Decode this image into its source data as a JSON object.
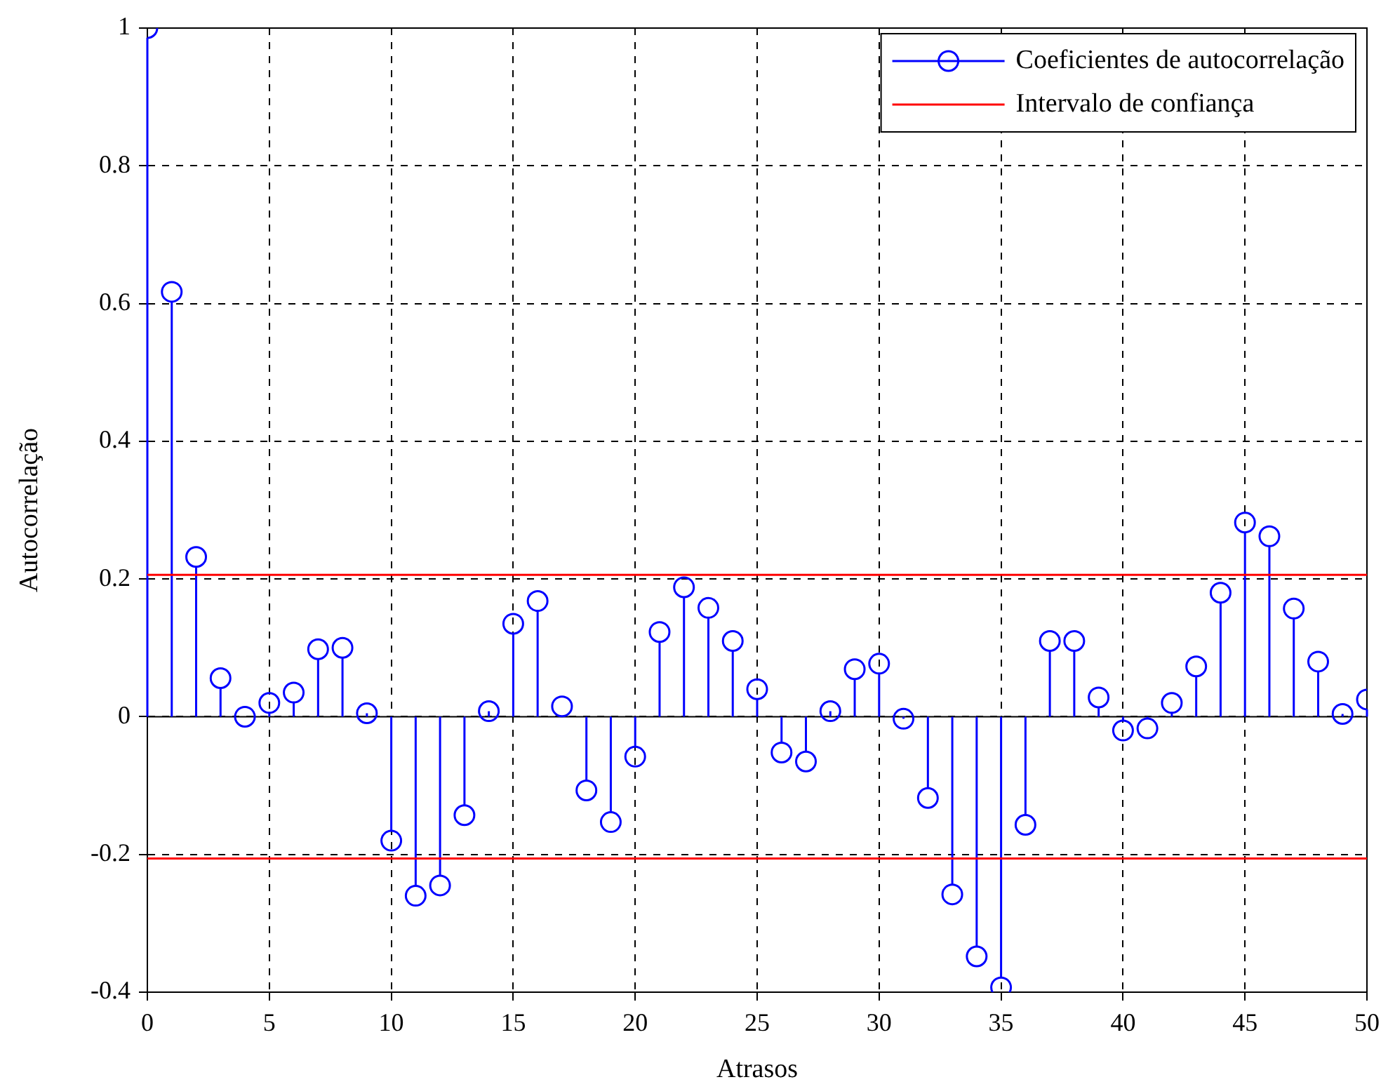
{
  "chart_data": {
    "type": "lollipop",
    "xlabel": "Atrasos",
    "ylabel": "Autocorrelação",
    "xlim": [
      0,
      50
    ],
    "xticks": [
      0,
      5,
      10,
      15,
      20,
      25,
      30,
      35,
      40,
      45,
      50
    ],
    "ylim": [
      -0.4,
      1
    ],
    "yticks": [
      -0.4,
      -0.2,
      0,
      0.2,
      0.4,
      0.6,
      0.8,
      1
    ],
    "grid": true,
    "legend": "top right",
    "series": [
      {
        "name": "Coeficientes de autocorrelação",
        "color": "#0000ff",
        "marker": "circle",
        "x": [
          0,
          1,
          2,
          3,
          4,
          5,
          6,
          7,
          8,
          9,
          10,
          11,
          12,
          13,
          14,
          15,
          16,
          17,
          18,
          19,
          20,
          21,
          22,
          23,
          24,
          25,
          26,
          27,
          28,
          29,
          30,
          31,
          32,
          33,
          34,
          35,
          36,
          37,
          38,
          39,
          40,
          41,
          42,
          43,
          44,
          45,
          46,
          47,
          48,
          49,
          50
        ],
        "values": [
          1,
          0.617,
          0.232,
          0.056,
          0,
          0.02,
          0.035,
          0.098,
          0.1,
          0.005,
          -0.18,
          -0.26,
          -0.245,
          -0.143,
          0.008,
          0.135,
          0.168,
          0.015,
          -0.107,
          -0.153,
          -0.058,
          0.123,
          0.188,
          0.158,
          0.11,
          0.04,
          -0.052,
          -0.065,
          0.008,
          0.069,
          0.077,
          -0.003,
          -0.118,
          -0.258,
          -0.348,
          -0.393,
          -0.157,
          0.11,
          0.11,
          0.028,
          -0.02,
          -0.017,
          0.02,
          0.073,
          0.18,
          0.282,
          0.262,
          0.157,
          0.08,
          0.004,
          0.025
        ]
      },
      {
        "name": "Intervalo de confiança",
        "type": "line",
        "color": "#ff0000",
        "marker": "none",
        "x": [
          0,
          50
        ],
        "values": [
          0.206,
          0.206
        ]
      },
      {
        "type": "line",
        "color": "#ff0000",
        "marker": "none",
        "x": [
          0,
          50
        ],
        "values": [
          -0.206,
          -0.206
        ]
      }
    ]
  }
}
